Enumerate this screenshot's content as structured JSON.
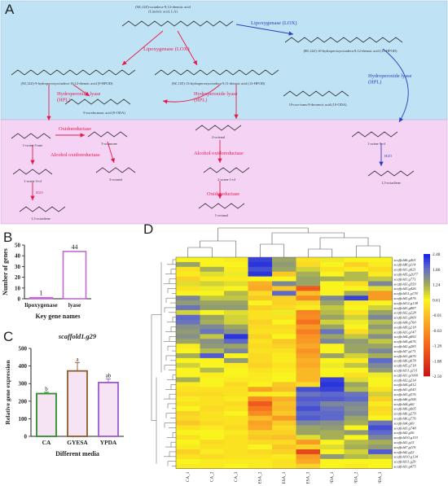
{
  "panels": {
    "A": {
      "letter": "A",
      "compounds": {
        "linoleic": "(9Z,12Z)-octadeca-9,12-dienoic acid\n(Linoleic acid, LA)",
        "hpod9": "(9Z,12Z)-9-hydroperoxyoctadeca-10,12-dienoic acid (9-HPOD)",
        "hpod13": "(9Z,11E)-13-hydroperoxyoctadeca-9,11-dienoic acid (13-HPOD)",
        "hpod10": "(8E,12Z)-10-hydroperoxyoctadeca-8,12-dienoic acid (10-HPOD)",
        "oda9": "9-oxodecanoic acid (9-ODA)",
        "oda10": "10-oxo-trans-8-decenoic acid (10-ODA)",
        "octen3one": "1-octen-3-one",
        "octanone": "3-octanone",
        "octenal": "2-octenal",
        "octen3ol_right": "1-octen-3-ol",
        "octen3ol_left": "1-octen-3-ol",
        "octanol3": "3-octanol",
        "octen1ol": "2-octen-1-ol",
        "octadiene_left": "1,3-octadiene",
        "octadiene_right": "1,3-octadiene",
        "octanol1": "1-octanol"
      },
      "enzymes": {
        "lox_left": "Lipoxygenase (LOX)",
        "lox_right": "Lipoxygenase (LOX)",
        "hpl_left": "Hydroperoxide lyase\n(HPL)",
        "hpl_mid": "Hydroperoxide lyase\n(HPL)",
        "hpl_right": "Hydroperoxide lyase\n(HPL)",
        "oxidoreductase_left": "Oxidoreductase",
        "oxidoreductase_right": "Oxidoreductase",
        "alcohol_left": "Alcohol oxidoreductase",
        "alcohol_right": "Alcohol oxidoreductase",
        "h2o_left": "H2O",
        "h2o_right": "H2O"
      },
      "colors": {
        "top_bg": "#bfe3f5",
        "bottom_bg": "#f5d3f5",
        "enzyme_red": "#e8194a",
        "enzyme_blue": "#2a3fbf"
      }
    },
    "B": {
      "letter": "B",
      "chart_data": {
        "type": "bar",
        "categories": [
          "lipoxygenase",
          "lyase"
        ],
        "values": [
          1,
          44
        ],
        "data_labels": [
          "1",
          "44"
        ],
        "xlabel": "Key gene names",
        "ylabel": "Number of genes",
        "yticks": [
          "0",
          "10",
          "20",
          "30",
          "40",
          "50"
        ],
        "ylim": [
          0,
          50
        ],
        "bar_fill": "#ffffff",
        "bar_edge": "#c06ad0"
      }
    },
    "C": {
      "letter": "C",
      "chart_data": {
        "type": "bar",
        "title": "scaffold1.g29",
        "categories": [
          "CA",
          "GYESA",
          "YPDA"
        ],
        "values": [
          243,
          372,
          306
        ],
        "errors": [
          8,
          48,
          20
        ],
        "significance": [
          "b",
          "a",
          "ab"
        ],
        "xlabel": "Different media",
        "ylabel": "Relative gene expression",
        "yticks": [
          "0",
          "100",
          "200",
          "300",
          "400",
          "500"
        ],
        "ylim": [
          0,
          500
        ],
        "bar_edges": [
          "#2e8b2e",
          "#8b5a2b",
          "#9b59d0"
        ],
        "bar_fill": "#f6e3f3"
      }
    },
    "D": {
      "letter": "D",
      "chart_data": {
        "type": "heatmap",
        "columns": [
          "CA_1",
          "CA_2",
          "CA_3",
          "GYESA_2",
          "GYESA_1",
          "GYESA_3",
          "YPDA_1",
          "YPDA_2",
          "YPDA_3"
        ],
        "rows": [
          "scaffold6.g401",
          "scaffold8.g114",
          "scaffold1.g621",
          "scaffold5.g2077",
          "scaffold1.g771",
          "scaffold3.g559",
          "scaffold3.g426",
          "scaffold11.g178",
          "scaffold3.g976",
          "scaffold12.g138",
          "scaffold3.g887",
          "scaffold2.g228",
          "scaffold1.g969",
          "scaffold4.g760",
          "scaffold9.g218",
          "scaffold1.g147",
          "scaffold4.g692",
          "scaffold4.g676",
          "scaffold2.g283",
          "scaffold7.g171",
          "scaffold1.g676",
          "scaffold6.g678",
          "scaffold5.g718",
          "scaffold11.g131",
          "scaffold1.g1000",
          "scaffold2.g214",
          "scaffold4.g412",
          "scaffold1.g543",
          "scaffold3.g576",
          "scaffold6.g306",
          "scaffold4.g60",
          "scaffold6.g605",
          "scaffold6.g279",
          "scaffold6.g776",
          "scaffold4.g69",
          "scaffold3.g748",
          "scaffold2.g56",
          "scaffold10.g153",
          "scaffold1.g15",
          "scaffold7.g119",
          "scaffold2.g22",
          "scaffold10.g134",
          "scaffold11.g29",
          "scaffold1.g475"
        ],
        "colorbar_ticks": [
          "2.48",
          "1.86",
          "1.24",
          "0.61",
          "-0.01",
          "-0.63",
          "-1.26",
          "-1.88",
          "-2.50"
        ],
        "color_range": [
          -2.5,
          2.48
        ],
        "values": [
          [
            0.6,
            0.6,
            0.5,
            2.2,
            1.3,
            0.4,
            0.7,
            0.6,
            0.6
          ],
          [
            1.3,
            0.6,
            0.6,
            2.3,
            1.4,
            0.3,
            0.6,
            0.2,
            0.5
          ],
          [
            0.4,
            1.2,
            0.5,
            2.1,
            1.3,
            0.9,
            0.4,
            0.5,
            0.3
          ],
          [
            0.5,
            0.8,
            0.7,
            2.3,
            0.1,
            1.2,
            0.6,
            1.1,
            0.5
          ],
          [
            0.2,
            0.5,
            0.5,
            0.6,
            0.6,
            1.3,
            1.2,
            1.1,
            1.0
          ],
          [
            0.8,
            0.9,
            0.8,
            -0.2,
            1.6,
            1.3,
            0.6,
            0.3,
            1.6
          ],
          [
            0.4,
            0.7,
            0.6,
            -0.3,
            0.1,
            -1.4,
            0.6,
            0.6,
            0.8
          ],
          [
            0.6,
            0.6,
            1.1,
            0.3,
            1.9,
            0.0,
            0.6,
            1.2,
            -0.5
          ],
          [
            1.6,
            1.0,
            1.0,
            0.1,
            0.2,
            -0.7,
            1.6,
            2.2,
            -0.5
          ],
          [
            1.4,
            1.3,
            1.3,
            0.6,
            0.2,
            0.3,
            1.3,
            0.5,
            0.6
          ],
          [
            1.8,
            1.4,
            1.4,
            0.2,
            0.3,
            0.5,
            1.0,
            0.6,
            0.9
          ],
          [
            0.9,
            0.6,
            0.8,
            0.4,
            0.7,
            -0.8,
            1.1,
            0.4,
            1.3
          ],
          [
            1.9,
            1.3,
            0.9,
            0.4,
            0.4,
            -0.7,
            1.3,
            0.9,
            1.6
          ],
          [
            1.8,
            1.2,
            0.9,
            0.2,
            0.6,
            -1.1,
            0.9,
            0.7,
            1.1
          ],
          [
            1.5,
            1.6,
            1.3,
            0.3,
            0.3,
            -0.5,
            1.3,
            0.6,
            1.4
          ],
          [
            1.4,
            1.8,
            1.5,
            0.4,
            0.4,
            -0.9,
            1.8,
            0.3,
            1.1
          ],
          [
            1.5,
            1.0,
            2.3,
            0.2,
            0.6,
            -0.6,
            1.3,
            1.0,
            1.5
          ],
          [
            1.3,
            1.5,
            1.9,
            0.4,
            0.1,
            -0.5,
            1.6,
            1.4,
            1.0
          ],
          [
            0.5,
            1.4,
            1.3,
            0.3,
            0.2,
            -0.3,
            0.6,
            1.3,
            1.3
          ],
          [
            0.6,
            1.1,
            1.6,
            0.4,
            0.4,
            -0.6,
            0.6,
            1.3,
            1.6
          ],
          [
            1.2,
            2.0,
            0.6,
            0.3,
            0.5,
            -0.4,
            1.3,
            0.9,
            1.2
          ],
          [
            0.6,
            0.6,
            1.4,
            0.3,
            0.5,
            -0.2,
            0.6,
            0.5,
            1.9
          ],
          [
            0.9,
            0.6,
            0.5,
            0.2,
            0.4,
            -0.3,
            0.7,
            1.0,
            1.6
          ],
          [
            0.6,
            1.1,
            0.6,
            0.4,
            0.5,
            -0.1,
            0.6,
            0.6,
            1.4
          ],
          [
            0.6,
            0.5,
            0.6,
            0.5,
            0.6,
            -0.1,
            0.6,
            0.4,
            0.7
          ],
          [
            1.2,
            0.6,
            0.5,
            0.5,
            0.6,
            -0.1,
            2.2,
            0.8,
            0.6
          ],
          [
            0.5,
            0.6,
            0.3,
            0.6,
            0.1,
            0.3,
            2.3,
            1.3,
            0.6
          ],
          [
            0.4,
            0.4,
            0.4,
            -0.4,
            0.0,
            2.1,
            2.2,
            1.1,
            0.4
          ],
          [
            0.3,
            0.3,
            0.4,
            0.5,
            0.5,
            1.8,
            1.9,
            1.8,
            0.9
          ],
          [
            0.5,
            0.4,
            0.5,
            -0.7,
            -0.2,
            2.0,
            2.0,
            1.9,
            0.2
          ],
          [
            0.4,
            0.4,
            0.3,
            -1.4,
            0.0,
            1.9,
            1.6,
            1.6,
            0.5
          ],
          [
            0.6,
            0.3,
            0.4,
            -1.0,
            -0.1,
            2.1,
            1.8,
            1.5,
            0.3
          ],
          [
            0.2,
            0.4,
            0.6,
            -0.7,
            0.1,
            1.9,
            1.9,
            1.6,
            0.4
          ],
          [
            0.3,
            0.4,
            0.4,
            0.0,
            -0.5,
            2.0,
            1.9,
            1.3,
            0.6
          ],
          [
            0.1,
            0.3,
            0.4,
            -0.4,
            0.1,
            1.6,
            1.5,
            1.2,
            1.8
          ],
          [
            0.4,
            0.5,
            0.3,
            -0.3,
            0.3,
            1.3,
            1.4,
            0.6,
            2.1
          ],
          [
            0.6,
            0.6,
            0.5,
            0.2,
            0.2,
            1.3,
            1.2,
            1.4,
            1.9
          ],
          [
            0.4,
            0.6,
            0.4,
            0.1,
            0.0,
            0.8,
            1.2,
            0.6,
            1.6
          ],
          [
            0.6,
            0.3,
            0.4,
            0.3,
            0.3,
            -0.5,
            0.6,
            1.1,
            1.2
          ],
          [
            0.5,
            0.4,
            0.4,
            0.6,
            0.1,
            0.2,
            0.8,
            1.2,
            1.4
          ],
          [
            0.2,
            0.5,
            0.4,
            0.3,
            0.2,
            -1.7,
            0.6,
            0.9,
            2.0
          ],
          [
            0.4,
            0.3,
            0.4,
            0.4,
            0.5,
            -0.5,
            1.4,
            1.1,
            1.0
          ],
          [
            0.6,
            0.5,
            0.5,
            0.5,
            0.4,
            -0.3,
            0.6,
            0.6,
            0.6
          ],
          [
            0.5,
            0.5,
            0.6,
            0.5,
            0.4,
            0.2,
            0.6,
            0.5,
            0.6
          ]
        ]
      }
    }
  }
}
